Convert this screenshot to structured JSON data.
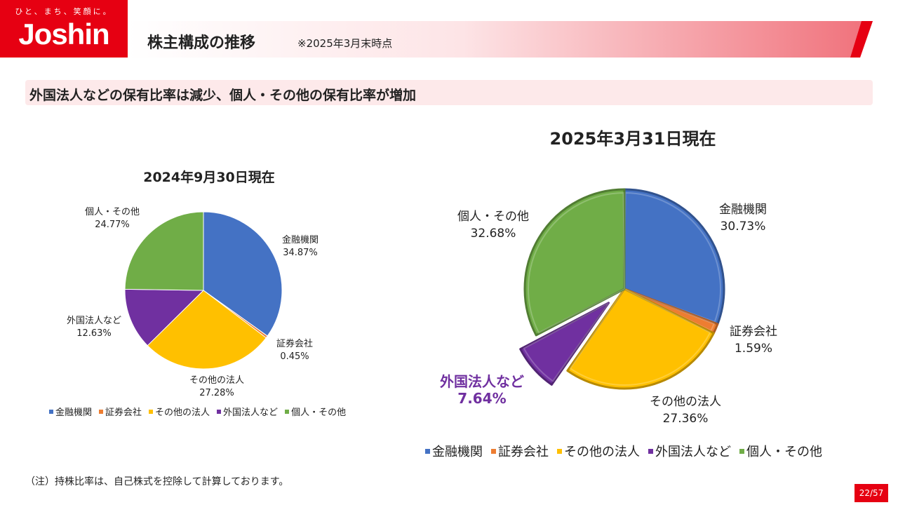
{
  "logo": {
    "tagline": "ひと、まち、笑顔に。",
    "wordmark": "Joshin",
    "brand_color": "#e60012"
  },
  "header": {
    "title": "株主構成の推移",
    "note": "※2025年3月末時点"
  },
  "subtitle": "外国法人などの保有比率は減少、個人・その他の保有比率が増加",
  "footnote": "（注）持株比率は、自己株式を控除して計算しております。",
  "page_number": "22/57",
  "chart_data": [
    {
      "type": "pie",
      "title": "2024年9月30日現在",
      "categories": [
        "金融機関",
        "証券会社",
        "その他の法人",
        "外国法人など",
        "個人・その他"
      ],
      "values": [
        34.87,
        0.45,
        27.28,
        12.63,
        24.77
      ],
      "value_labels": [
        "34.87%",
        "0.45%",
        "27.28%",
        "12.63%",
        "24.77%"
      ],
      "colors": [
        "#4472c4",
        "#ed7d31",
        "#ffc000",
        "#7030a0",
        "#70ad47"
      ],
      "legend": "bottom"
    },
    {
      "type": "pie",
      "title": "2025年3月31日現在",
      "categories": [
        "金融機関",
        "証券会社",
        "その他の法人",
        "外国法人など",
        "個人・その他"
      ],
      "values": [
        30.73,
        1.59,
        27.36,
        7.64,
        32.68
      ],
      "value_labels": [
        "30.73%",
        "1.59%",
        "27.36%",
        "7.64%",
        "32.68%"
      ],
      "colors": [
        "#4472c4",
        "#ed7d31",
        "#ffc000",
        "#7030a0",
        "#70ad47"
      ],
      "exploded": [
        "外国法人など"
      ],
      "highlighted_label": "外国法人など",
      "highlight_color": "#7030a0",
      "legend": "bottom"
    }
  ]
}
